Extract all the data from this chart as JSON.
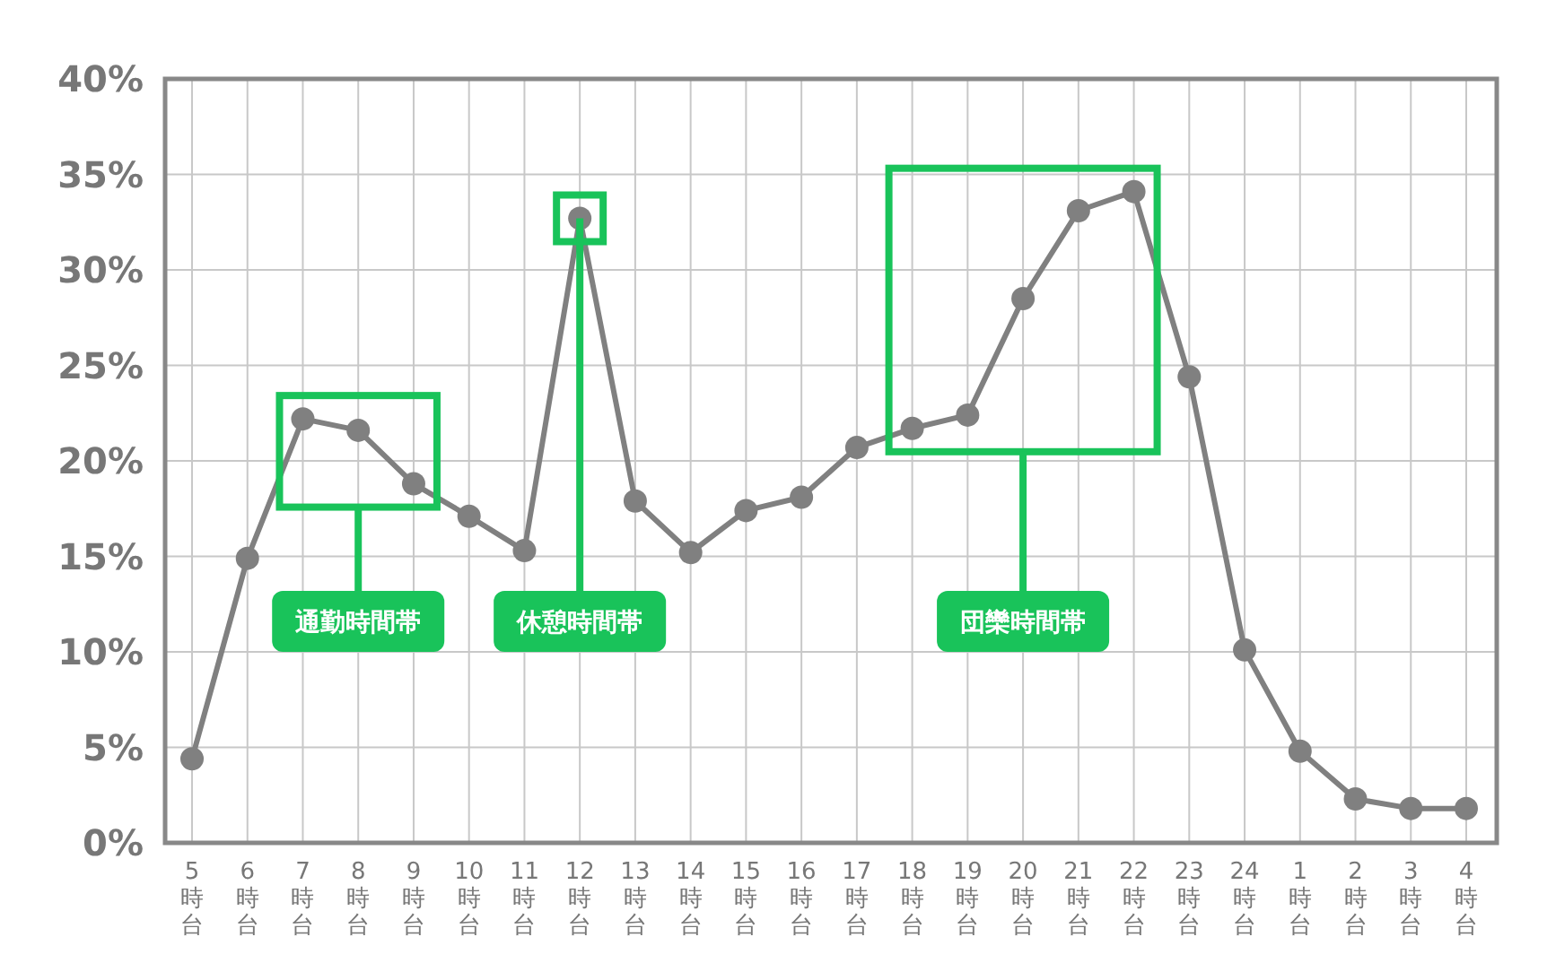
{
  "chart_data": {
    "type": "line",
    "categories": [
      "5時台",
      "6時台",
      "7時台",
      "8時台",
      "9時台",
      "10時台",
      "11時台",
      "12時台",
      "13時台",
      "14時台",
      "15時台",
      "16時台",
      "17時台",
      "18時台",
      "19時台",
      "20時台",
      "21時台",
      "22時台",
      "23時台",
      "24時台",
      "1時台",
      "2時台",
      "3時台",
      "4時台"
    ],
    "series": [
      {
        "color": "#808080",
        "values": [
          4.4,
          14.9,
          22.2,
          21.6,
          18.8,
          17.1,
          15.3,
          32.7,
          17.9,
          15.2,
          17.4,
          18.1,
          20.7,
          21.7,
          22.4,
          28.5,
          33.1,
          34.1,
          24.4,
          10.1,
          4.8,
          2.3,
          1.8,
          1.8
        ]
      }
    ],
    "ylim": [
      0,
      40
    ],
    "yticks": [
      {
        "value": 0,
        "label": "0%"
      },
      {
        "value": 5,
        "label": "5%"
      },
      {
        "value": 10,
        "label": "10%"
      },
      {
        "value": 15,
        "label": "15%"
      },
      {
        "value": 20,
        "label": "20%"
      },
      {
        "value": 25,
        "label": "25%"
      },
      {
        "value": 30,
        "label": "30%"
      },
      {
        "value": 35,
        "label": "35%"
      },
      {
        "value": 40,
        "label": "40%"
      }
    ],
    "grid": true,
    "marker": "circle",
    "line_style": "solid",
    "annotations": [
      "通勤時間帯",
      {
        "text": "休憩時間帯",
        "x": "12時台",
        "y": 32.7
      },
      "団欒時間帯"
    ]
  }
}
